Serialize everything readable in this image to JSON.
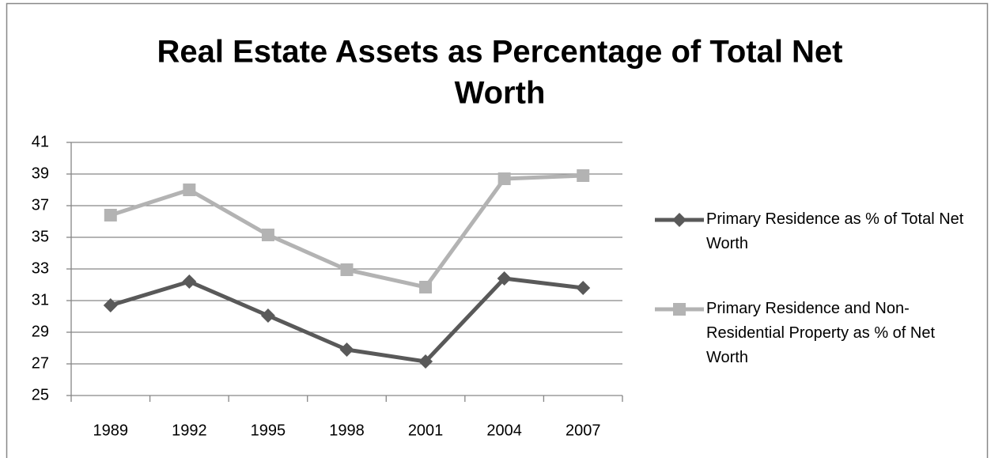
{
  "chart_data": {
    "type": "line",
    "title": [
      "Real Estate Assets as Percentage of Total Net",
      "Worth"
    ],
    "categories": [
      "1989",
      "1992",
      "1995",
      "1998",
      "2001",
      "2004",
      "2007"
    ],
    "series": [
      {
        "name": "Primary Residence as % of Total Net Worth",
        "color": "#595959",
        "marker": "diamond",
        "values": [
          30.7,
          32.2,
          30.05,
          27.9,
          27.15,
          32.4,
          31.8
        ]
      },
      {
        "name": "Primary Residence and Non-Residential Property as % of Net Worth",
        "color": "#b3b3b3",
        "marker": "square",
        "values": [
          36.4,
          38.0,
          35.15,
          32.95,
          31.85,
          38.7,
          38.9
        ]
      }
    ],
    "ylim": [
      25,
      41
    ],
    "yticks": [
      25,
      27,
      29,
      31,
      33,
      35,
      37,
      39,
      41
    ],
    "grid": true,
    "legend": "right"
  }
}
